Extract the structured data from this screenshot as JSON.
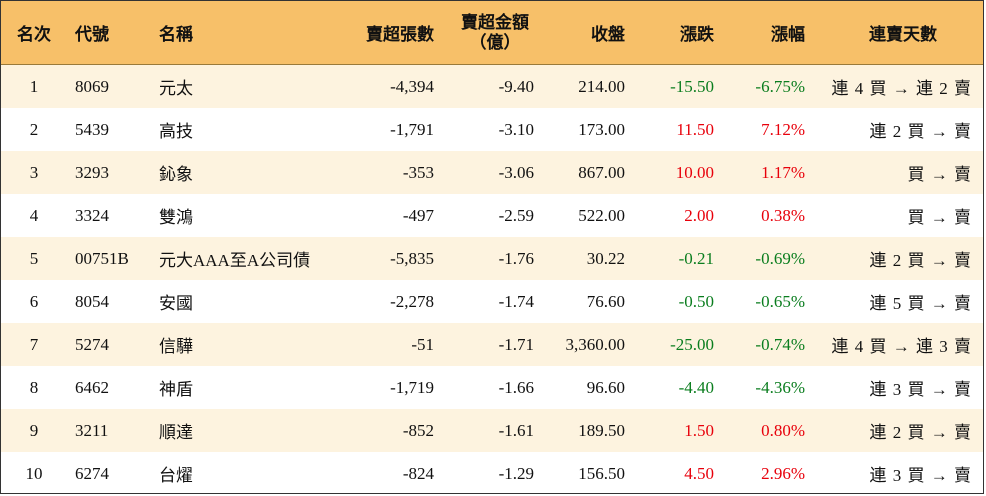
{
  "headers": {
    "rank": "名次",
    "code": "代號",
    "name": "名稱",
    "shares": "賣超張數",
    "amount_line1": "賣超金額",
    "amount_line2": "（億）",
    "close": "收盤",
    "change": "漲跌",
    "pct": "漲幅",
    "streak": "連賣天數"
  },
  "rows": [
    {
      "rank": "1",
      "code": "8069",
      "name": "元太",
      "shares": "-4,394",
      "amount": "-9.40",
      "close": "214.00",
      "change": "-15.50",
      "pct": "-6.75%",
      "streak": "連 4 買 → 連 2 賣",
      "dir": "neg"
    },
    {
      "rank": "2",
      "code": "5439",
      "name": "高技",
      "shares": "-1,791",
      "amount": "-3.10",
      "close": "173.00",
      "change": "11.50",
      "pct": "7.12%",
      "streak": "連 2 買 → 賣",
      "dir": "pos"
    },
    {
      "rank": "3",
      "code": "3293",
      "name": "鈊象",
      "shares": "-353",
      "amount": "-3.06",
      "close": "867.00",
      "change": "10.00",
      "pct": "1.17%",
      "streak": "買 → 賣",
      "dir": "pos"
    },
    {
      "rank": "4",
      "code": "3324",
      "name": "雙鴻",
      "shares": "-497",
      "amount": "-2.59",
      "close": "522.00",
      "change": "2.00",
      "pct": "0.38%",
      "streak": "買 → 賣",
      "dir": "pos"
    },
    {
      "rank": "5",
      "code": "00751B",
      "name": "元大AAA至A公司債",
      "shares": "-5,835",
      "amount": "-1.76",
      "close": "30.22",
      "change": "-0.21",
      "pct": "-0.69%",
      "streak": "連 2 買 → 賣",
      "dir": "neg"
    },
    {
      "rank": "6",
      "code": "8054",
      "name": "安國",
      "shares": "-2,278",
      "amount": "-1.74",
      "close": "76.60",
      "change": "-0.50",
      "pct": "-0.65%",
      "streak": "連 5 買 → 賣",
      "dir": "neg"
    },
    {
      "rank": "7",
      "code": "5274",
      "name": "信驊",
      "shares": "-51",
      "amount": "-1.71",
      "close": "3,360.00",
      "change": "-25.00",
      "pct": "-0.74%",
      "streak": "連 4 買 → 連 3 賣",
      "dir": "neg"
    },
    {
      "rank": "8",
      "code": "6462",
      "name": "神盾",
      "shares": "-1,719",
      "amount": "-1.66",
      "close": "96.60",
      "change": "-4.40",
      "pct": "-4.36%",
      "streak": "連 3 買 → 賣",
      "dir": "neg"
    },
    {
      "rank": "9",
      "code": "3211",
      "name": "順達",
      "shares": "-852",
      "amount": "-1.61",
      "close": "189.50",
      "change": "1.50",
      "pct": "0.80%",
      "streak": "連 2 買 → 賣",
      "dir": "pos"
    },
    {
      "rank": "10",
      "code": "6274",
      "name": "台燿",
      "shares": "-824",
      "amount": "-1.29",
      "close": "156.50",
      "change": "4.50",
      "pct": "2.96%",
      "streak": "連 3 買 → 賣",
      "dir": "pos"
    }
  ],
  "colors": {
    "header_bg": "#f7c069",
    "alt_row_bg": "#fdf3df",
    "up": "#e8000b",
    "down": "#0a7d1e"
  }
}
